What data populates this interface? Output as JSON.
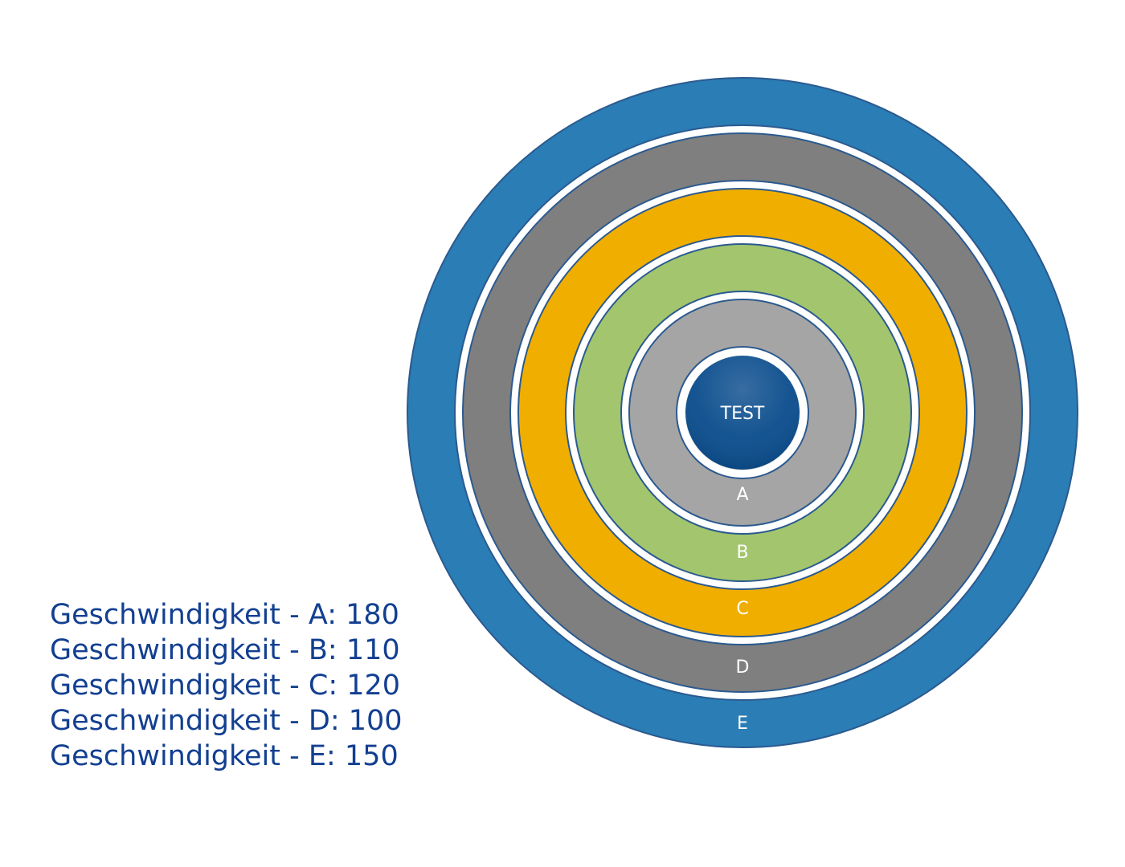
{
  "diagram": {
    "center": {
      "label": "TEST",
      "color": "#0b4d8d"
    },
    "rings": [
      {
        "label": "A",
        "color": "#a5a5a5"
      },
      {
        "label": "B",
        "color": "#a2c56e"
      },
      {
        "label": "C",
        "color": "#f0ae00"
      },
      {
        "label": "D",
        "color": "#7f7f7f"
      },
      {
        "label": "E",
        "color": "#2a7db5"
      }
    ],
    "outline_color": "#2b5a8f",
    "gap_color": "#ffffff"
  },
  "legend": {
    "color": "#123f91",
    "items": [
      "Geschwindigkeit - A: 180",
      "Geschwindigkeit - B: 110",
      "Geschwindigkeit - C: 120",
      "Geschwindigkeit - D: 100",
      "Geschwindigkeit - E: 150"
    ]
  }
}
